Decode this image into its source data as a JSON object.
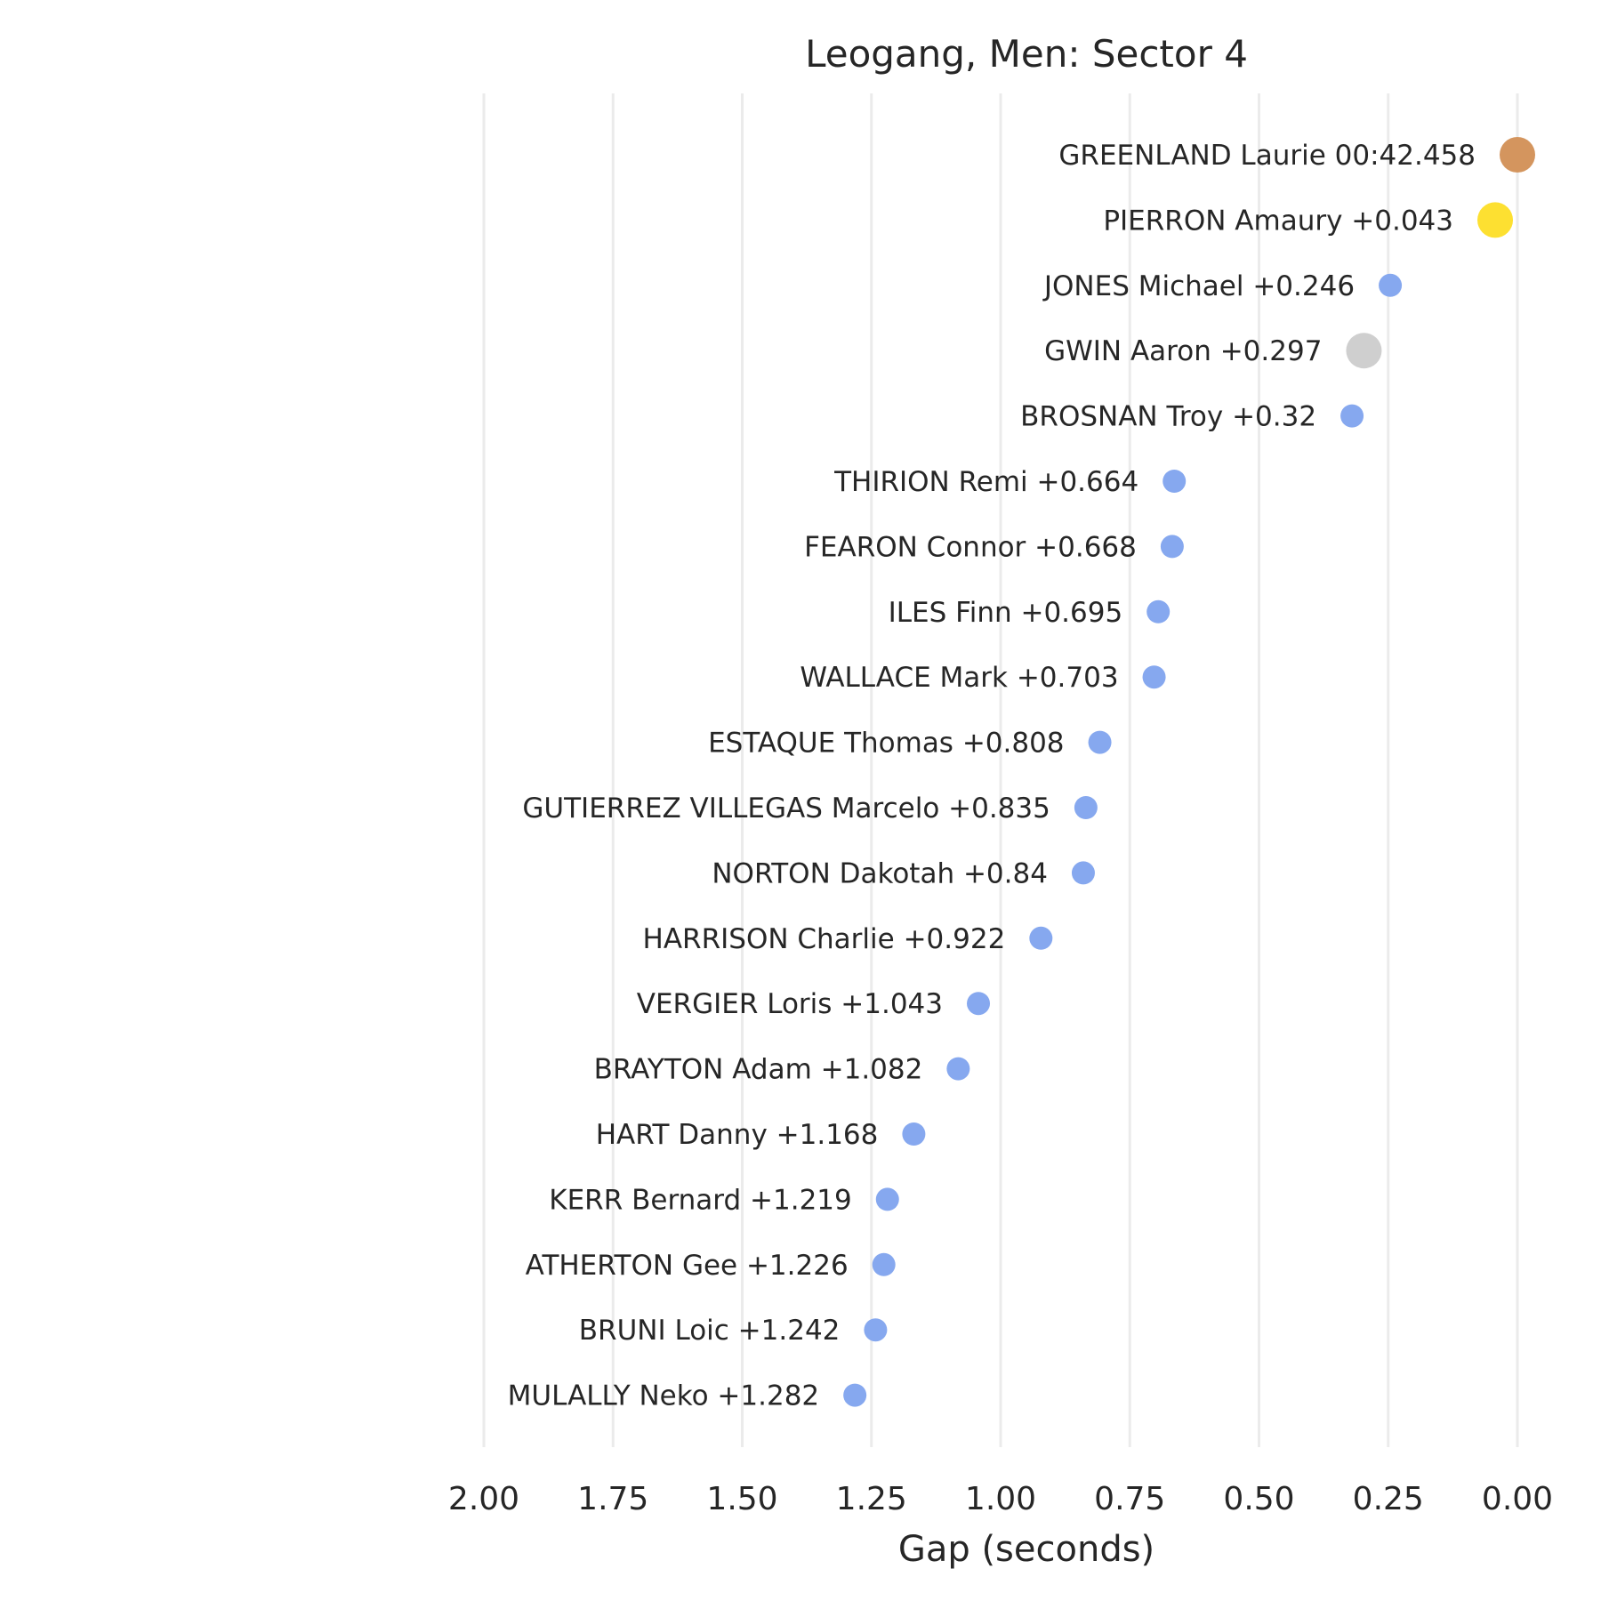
{
  "chart_data": {
    "type": "scatter",
    "title": "Leogang, Men: Sector 4",
    "xlabel": "Gap (seconds)",
    "ylabel": "",
    "xlim": [
      2.0,
      0.0
    ],
    "x_inverted": true,
    "xticks": [
      "2.00",
      "1.75",
      "1.50",
      "1.25",
      "1.00",
      "0.75",
      "0.50",
      "0.25",
      "0.00"
    ],
    "grid": "vertical",
    "colors": {
      "default": "#86a8ef",
      "first": "#d4955e",
      "second": "#fde031",
      "third": "#cfcfcf"
    },
    "points": [
      {
        "label": "GREENLAND Laurie 00:42.458",
        "gap": 0.0,
        "highlight": "first"
      },
      {
        "label": "PIERRON Amaury +0.043",
        "gap": 0.043,
        "highlight": "second"
      },
      {
        "label": "JONES Michael +0.246",
        "gap": 0.246,
        "highlight": "none"
      },
      {
        "label": "GWIN Aaron +0.297",
        "gap": 0.297,
        "highlight": "third"
      },
      {
        "label": "BROSNAN Troy +0.32",
        "gap": 0.32,
        "highlight": "none"
      },
      {
        "label": "THIRION Remi +0.664",
        "gap": 0.664,
        "highlight": "none"
      },
      {
        "label": "FEARON Connor +0.668",
        "gap": 0.668,
        "highlight": "none"
      },
      {
        "label": "ILES Finn +0.695",
        "gap": 0.695,
        "highlight": "none"
      },
      {
        "label": "WALLACE Mark +0.703",
        "gap": 0.703,
        "highlight": "none"
      },
      {
        "label": "ESTAQUE Thomas +0.808",
        "gap": 0.808,
        "highlight": "none"
      },
      {
        "label": "GUTIERREZ VILLEGAS Marcelo +0.835",
        "gap": 0.835,
        "highlight": "none"
      },
      {
        "label": "NORTON Dakotah +0.84",
        "gap": 0.84,
        "highlight": "none"
      },
      {
        "label": "HARRISON Charlie +0.922",
        "gap": 0.922,
        "highlight": "none"
      },
      {
        "label": "VERGIER Loris +1.043",
        "gap": 1.043,
        "highlight": "none"
      },
      {
        "label": "BRAYTON Adam +1.082",
        "gap": 1.082,
        "highlight": "none"
      },
      {
        "label": "HART Danny +1.168",
        "gap": 1.168,
        "highlight": "none"
      },
      {
        "label": "KERR Bernard +1.219",
        "gap": 1.219,
        "highlight": "none"
      },
      {
        "label": "ATHERTON Gee +1.226",
        "gap": 1.226,
        "highlight": "none"
      },
      {
        "label": "BRUNI Loic +1.242",
        "gap": 1.242,
        "highlight": "none"
      },
      {
        "label": "MULALLY Neko +1.282",
        "gap": 1.282,
        "highlight": "none"
      }
    ]
  }
}
